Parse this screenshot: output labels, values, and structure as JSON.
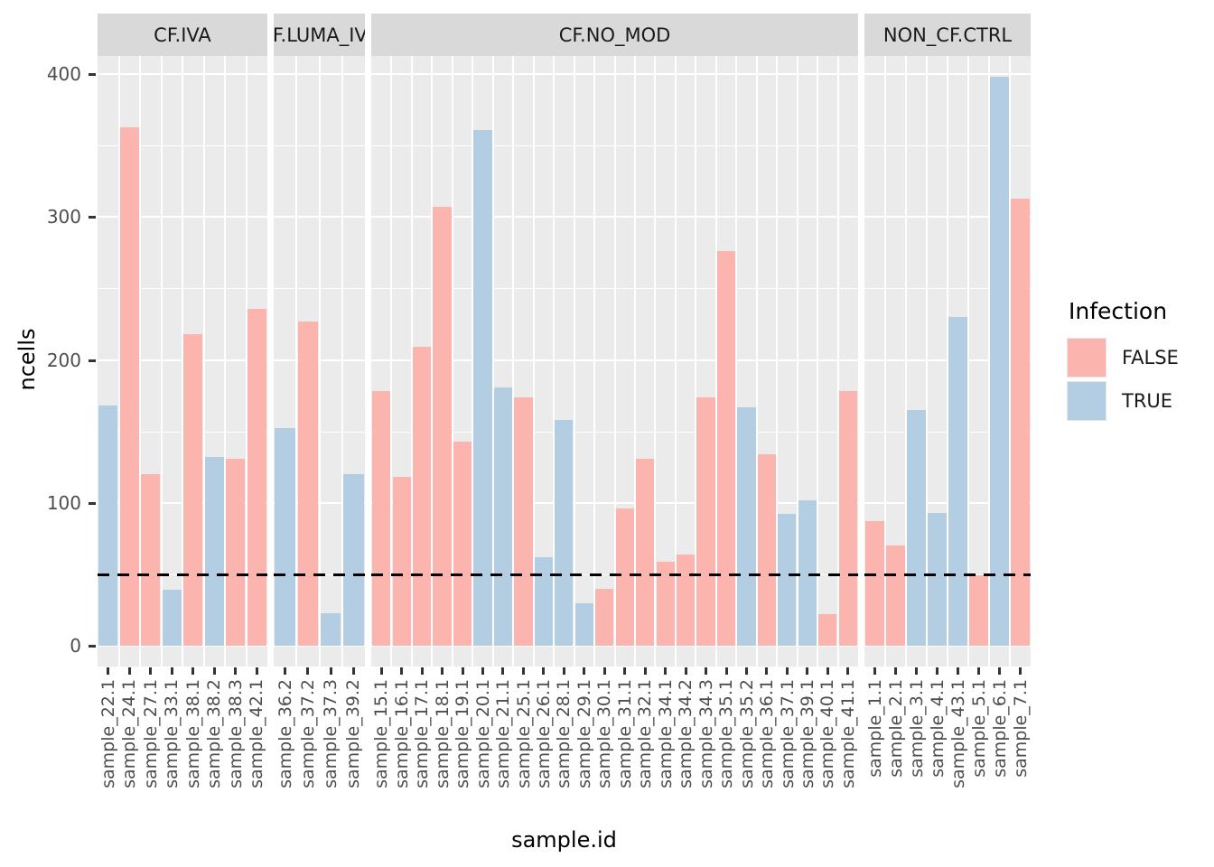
{
  "chart_data": {
    "type": "bar",
    "title": "",
    "xlabel": "sample.id",
    "ylabel": "ncells",
    "y_ticks": [
      0,
      100,
      200,
      300,
      400
    ],
    "ylim": [
      0,
      413
    ],
    "grid": true,
    "hline": {
      "y": 50,
      "style": "dashed",
      "color": "#000000"
    },
    "legend": {
      "title": "Infection",
      "position": "right",
      "entries": [
        {
          "label": "FALSE",
          "color": "#FBB4AE"
        },
        {
          "label": "TRUE",
          "color": "#B3CDE3"
        }
      ]
    },
    "panel_background": "#EBEBEB",
    "strip_background": "#D9D9D9",
    "facets": [
      {
        "label": "CF.IVA",
        "bars": [
          {
            "sample": "sample_22.1",
            "value": 168,
            "infection": "TRUE"
          },
          {
            "sample": "sample_24.1",
            "value": 363,
            "infection": "FALSE"
          },
          {
            "sample": "sample_27.1",
            "value": 120,
            "infection": "FALSE"
          },
          {
            "sample": "sample_33.1",
            "value": 39,
            "infection": "TRUE"
          },
          {
            "sample": "sample_38.1",
            "value": 218,
            "infection": "FALSE"
          },
          {
            "sample": "sample_38.2",
            "value": 132,
            "infection": "TRUE"
          },
          {
            "sample": "sample_38.3",
            "value": 131,
            "infection": "FALSE"
          },
          {
            "sample": "sample_42.1",
            "value": 236,
            "infection": "FALSE"
          }
        ]
      },
      {
        "label": "CF.LUMA_IVA",
        "bars": [
          {
            "sample": "sample_36.2",
            "value": 152,
            "infection": "TRUE"
          },
          {
            "sample": "sample_37.2",
            "value": 227,
            "infection": "FALSE"
          },
          {
            "sample": "sample_37.3",
            "value": 23,
            "infection": "TRUE"
          },
          {
            "sample": "sample_39.2",
            "value": 120,
            "infection": "TRUE"
          }
        ]
      },
      {
        "label": "CF.NO_MOD",
        "bars": [
          {
            "sample": "sample_15.1",
            "value": 178,
            "infection": "FALSE"
          },
          {
            "sample": "sample_16.1",
            "value": 118,
            "infection": "FALSE"
          },
          {
            "sample": "sample_17.1",
            "value": 209,
            "infection": "FALSE"
          },
          {
            "sample": "sample_18.1",
            "value": 307,
            "infection": "FALSE"
          },
          {
            "sample": "sample_19.1",
            "value": 143,
            "infection": "FALSE"
          },
          {
            "sample": "sample_20.1",
            "value": 361,
            "infection": "TRUE"
          },
          {
            "sample": "sample_21.1",
            "value": 181,
            "infection": "TRUE"
          },
          {
            "sample": "sample_25.1",
            "value": 174,
            "infection": "FALSE"
          },
          {
            "sample": "sample_26.1",
            "value": 62,
            "infection": "TRUE"
          },
          {
            "sample": "sample_28.1",
            "value": 158,
            "infection": "TRUE"
          },
          {
            "sample": "sample_29.1",
            "value": 30,
            "infection": "TRUE"
          },
          {
            "sample": "sample_30.1",
            "value": 40,
            "infection": "FALSE"
          },
          {
            "sample": "sample_31.1",
            "value": 96,
            "infection": "FALSE"
          },
          {
            "sample": "sample_32.1",
            "value": 131,
            "infection": "FALSE"
          },
          {
            "sample": "sample_34.1",
            "value": 59,
            "infection": "FALSE"
          },
          {
            "sample": "sample_34.2",
            "value": 64,
            "infection": "FALSE"
          },
          {
            "sample": "sample_34.3",
            "value": 174,
            "infection": "FALSE"
          },
          {
            "sample": "sample_35.1",
            "value": 276,
            "infection": "FALSE"
          },
          {
            "sample": "sample_35.2",
            "value": 167,
            "infection": "TRUE"
          },
          {
            "sample": "sample_36.1",
            "value": 134,
            "infection": "FALSE"
          },
          {
            "sample": "sample_37.1",
            "value": 92,
            "infection": "TRUE"
          },
          {
            "sample": "sample_39.1",
            "value": 102,
            "infection": "TRUE"
          },
          {
            "sample": "sample_40.1",
            "value": 22,
            "infection": "FALSE"
          },
          {
            "sample": "sample_41.1",
            "value": 178,
            "infection": "FALSE"
          }
        ]
      },
      {
        "label": "NON_CF.CTRL",
        "bars": [
          {
            "sample": "sample_1.1",
            "value": 87,
            "infection": "FALSE"
          },
          {
            "sample": "sample_2.1",
            "value": 70,
            "infection": "FALSE"
          },
          {
            "sample": "sample_3.1",
            "value": 165,
            "infection": "TRUE"
          },
          {
            "sample": "sample_4.1",
            "value": 93,
            "infection": "TRUE"
          },
          {
            "sample": "sample_43.1",
            "value": 230,
            "infection": "TRUE"
          },
          {
            "sample": "sample_5.1",
            "value": 49,
            "infection": "FALSE"
          },
          {
            "sample": "sample_6.1",
            "value": 398,
            "infection": "TRUE"
          },
          {
            "sample": "sample_7.1",
            "value": 313,
            "infection": "FALSE"
          }
        ]
      }
    ]
  }
}
